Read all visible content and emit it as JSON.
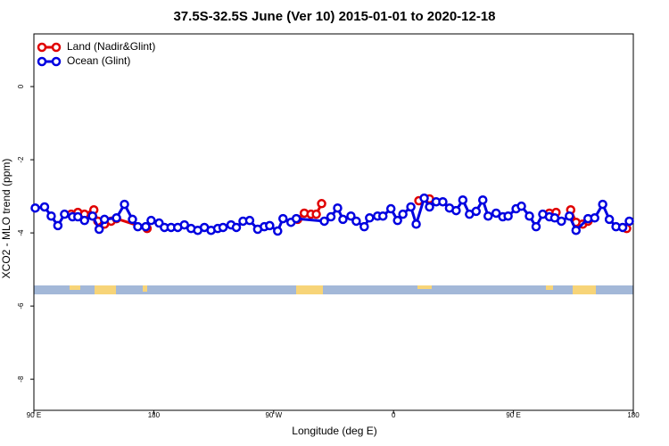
{
  "chart_data": {
    "type": "line",
    "title": "37.5S-32.5S June (Ver 10)   2015-01-01 to 2020-12-18",
    "x_label": "Longitude (deg E)",
    "y_label": "XCO2 - MLO trend (ppm)",
    "xlim": [
      90,
      540
    ],
    "ylim": [
      -8.85,
      1.44
    ],
    "xticks": [
      {
        "value": 90,
        "label": "90 E"
      },
      180,
      {
        "value": 270,
        "label": "90 W"
      },
      {
        "value": 360,
        "label": "0"
      },
      {
        "value": 450,
        "label": "90 E"
      },
      {
        "value": 540,
        "label": "180"
      }
    ],
    "yticks": [
      0,
      -2,
      -4,
      -6,
      -8
    ],
    "legend": "top-left",
    "series": [
      {
        "name": "Land (Nadir&Glint)",
        "color": "#e00000",
        "x": [
          118,
          123,
          128,
          135,
          138,
          143,
          148,
          152,
          175,
          null,
          288,
          293,
          298,
          302,
          306,
          null,
          379,
          387,
          null,
          477,
          482,
          null,
          493,
          497,
          502,
          506,
          null,
          535
        ],
        "values": [
          -3.49,
          -3.44,
          -3.49,
          -3.37,
          -3.68,
          -3.76,
          -3.68,
          -3.61,
          -3.88,
          null,
          -3.63,
          -3.46,
          -3.49,
          -3.49,
          -3.2,
          null,
          -3.12,
          -3.07,
          null,
          -3.46,
          -3.44,
          null,
          -3.37,
          -3.71,
          -3.76,
          -3.68,
          null,
          -3.88
        ]
      },
      {
        "name": "Ocean (Glint)",
        "color": "#0000e0",
        "x": [
          91,
          98,
          103,
          108,
          113,
          119,
          123,
          128,
          134,
          139,
          143,
          152,
          158,
          164,
          168,
          174,
          178,
          184,
          188,
          193,
          198,
          203,
          208,
          213,
          218,
          223,
          228,
          232,
          238,
          242,
          247,
          252,
          258,
          263,
          267,
          273,
          277,
          283,
          287,
          308,
          313,
          318,
          322,
          328,
          332,
          338,
          342,
          348,
          352,
          358,
          363,
          367,
          373,
          377,
          383,
          387,
          392,
          397,
          402,
          407,
          412,
          417,
          422,
          427,
          431,
          437,
          442,
          446,
          452,
          456,
          462,
          467,
          472,
          477,
          481,
          486,
          492,
          497,
          506,
          511,
          517,
          522,
          527,
          532,
          537
        ],
        "values": [
          -3.32,
          -3.29,
          -3.54,
          -3.8,
          -3.49,
          -3.56,
          -3.56,
          -3.66,
          -3.54,
          -3.9,
          -3.63,
          -3.59,
          -3.22,
          -3.63,
          -3.83,
          -3.83,
          -3.66,
          -3.73,
          -3.85,
          -3.85,
          -3.85,
          -3.78,
          -3.88,
          -3.93,
          -3.85,
          -3.93,
          -3.88,
          -3.85,
          -3.78,
          -3.85,
          -3.68,
          -3.66,
          -3.9,
          -3.83,
          -3.8,
          -3.95,
          -3.61,
          -3.71,
          -3.61,
          -3.68,
          -3.56,
          -3.32,
          -3.63,
          -3.54,
          -3.68,
          -3.83,
          -3.59,
          -3.54,
          -3.54,
          -3.34,
          -3.66,
          -3.49,
          -3.29,
          -3.76,
          -3.05,
          -3.29,
          -3.15,
          -3.15,
          -3.32,
          -3.39,
          -3.1,
          -3.49,
          -3.41,
          -3.1,
          -3.54,
          -3.46,
          -3.56,
          -3.54,
          -3.34,
          -3.27,
          -3.54,
          -3.83,
          -3.49,
          -3.56,
          -3.59,
          -3.68,
          -3.54,
          -3.93,
          -3.61,
          -3.59,
          -3.22,
          -3.63,
          -3.83,
          -3.85,
          -3.68
        ]
      }
    ]
  }
}
